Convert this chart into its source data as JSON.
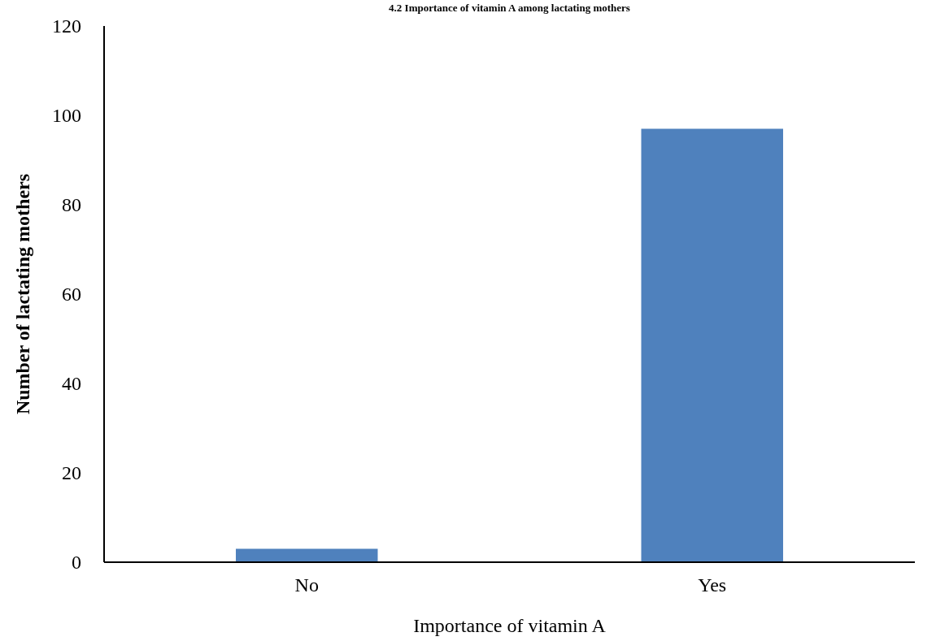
{
  "chart_data": {
    "type": "bar",
    "title": "4.2 Importance of vitamin A among lactating mothers",
    "xlabel": "Importance of vitamin A",
    "ylabel": "Number of lactating mothers",
    "categories": [
      "No",
      "Yes"
    ],
    "values": [
      3,
      97
    ],
    "color": "#4f81bd",
    "ylim": [
      0,
      120
    ],
    "yticks": [
      0,
      20,
      40,
      60,
      80,
      100,
      120
    ],
    "grid": false
  }
}
